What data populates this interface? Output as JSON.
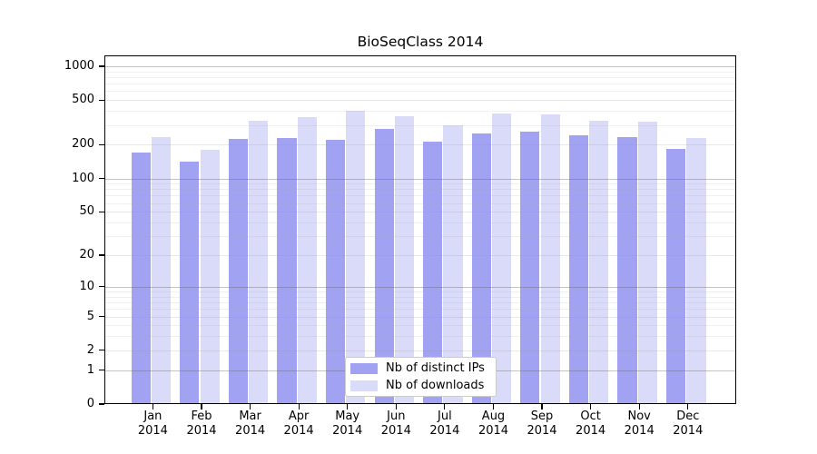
{
  "figure": {
    "title": "BioSeqClass 2014"
  },
  "chart_data": {
    "type": "bar",
    "title": "BioSeqClass 2014",
    "categories": [
      "Jan 2014",
      "Feb 2014",
      "Mar 2014",
      "Apr 2014",
      "May 2014",
      "Jun 2014",
      "Jul 2014",
      "Aug 2014",
      "Sep 2014",
      "Oct 2014",
      "Nov 2014",
      "Dec 2014"
    ],
    "series": [
      {
        "name": "Nb of distinct IPs",
        "color": "#a2a2f2",
        "values": [
          170,
          141,
          227,
          231,
          222,
          278,
          212,
          251,
          262,
          245,
          234,
          184
        ]
      },
      {
        "name": "Nb of downloads",
        "color": "#dadaf9",
        "values": [
          235,
          180,
          325,
          351,
          399,
          358,
          297,
          380,
          372,
          327,
          322,
          231
        ]
      }
    ],
    "xlabel": "",
    "ylabel": "",
    "y_axis": {
      "scale": "log10(1+v)",
      "tick_values": [
        0,
        1,
        2,
        5,
        10,
        20,
        50,
        100,
        200,
        500,
        1000
      ],
      "tick_labels": [
        "0",
        "1",
        "2",
        "5",
        "10",
        "20",
        "50",
        "100",
        "200",
        "500",
        "1000"
      ],
      "range": [
        0,
        1300
      ]
    },
    "grid": "horizontal log minor+major, drawn over bars",
    "legend": {
      "position": "inside bottom-center",
      "entries": [
        "Nb of distinct IPs",
        "Nb of downloads"
      ]
    }
  }
}
